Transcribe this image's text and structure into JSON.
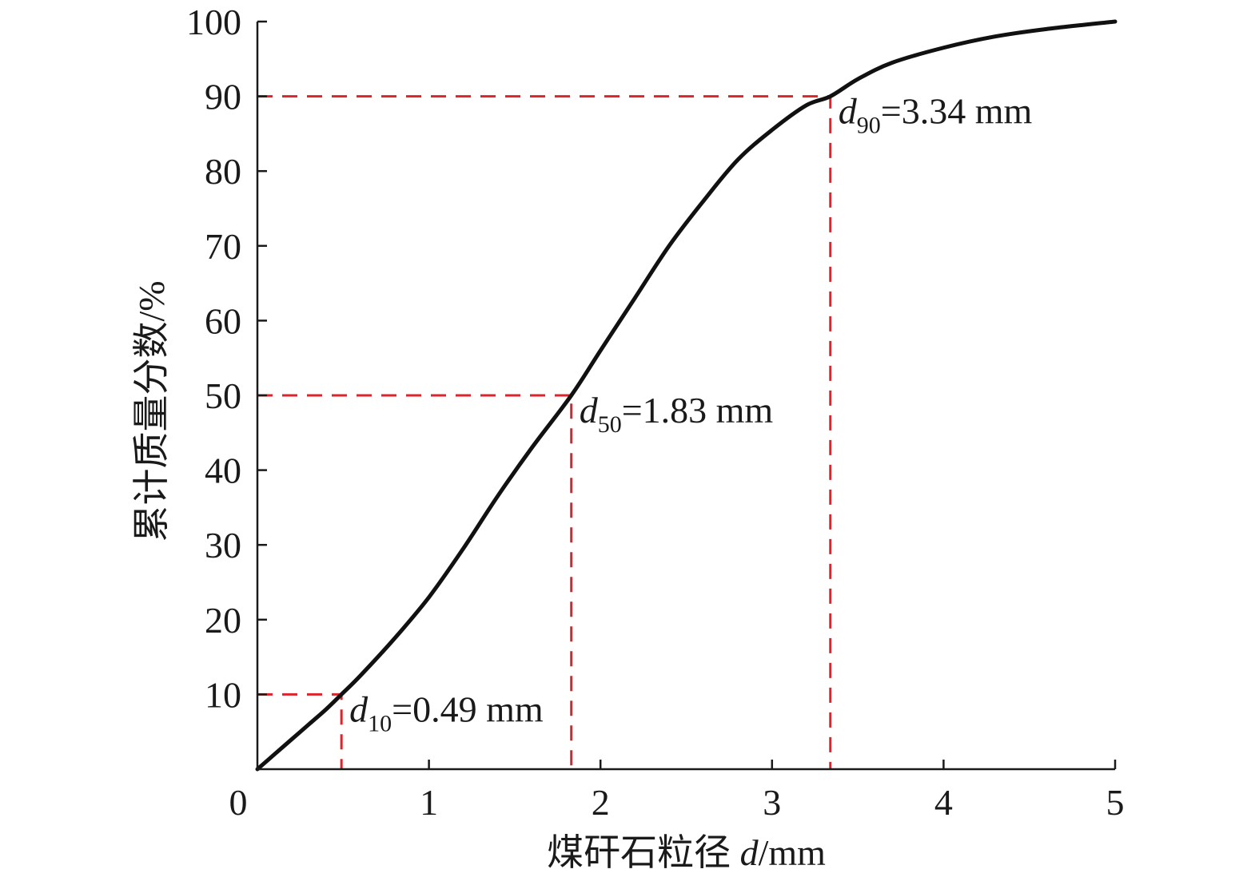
{
  "chart_data": {
    "type": "line",
    "xlabel_prefix": "煤矸石粒径 ",
    "xlabel_var": "d",
    "xlabel_unit": "/mm",
    "ylabel": "累计质量分数/%",
    "xlim": [
      0,
      5
    ],
    "ylim": [
      0,
      100
    ],
    "x_ticks": [
      0,
      1,
      2,
      3,
      4,
      5
    ],
    "y_ticks": [
      10,
      20,
      30,
      40,
      50,
      60,
      70,
      80,
      90,
      100
    ],
    "grid": false,
    "series": [
      {
        "x": [
          0.0,
          0.1,
          0.2,
          0.3,
          0.4,
          0.49,
          0.6,
          0.8,
          1.0,
          1.2,
          1.4,
          1.6,
          1.83,
          2.0,
          2.2,
          2.4,
          2.6,
          2.8,
          3.0,
          3.2,
          3.34,
          3.5,
          3.7,
          4.0,
          4.3,
          4.6,
          5.0
        ],
        "y": [
          0,
          2.0,
          4.0,
          6.0,
          8.0,
          10,
          12.5,
          17.5,
          23.0,
          29.5,
          36.5,
          43.0,
          50,
          56.0,
          63.0,
          70.0,
          76.0,
          81.5,
          85.5,
          88.8,
          90,
          92.3,
          94.5,
          96.5,
          98.0,
          99.0,
          100
        ]
      }
    ],
    "annotations": [
      {
        "var": "d",
        "sub": "10",
        "text": "=0.49 mm",
        "x": 0.49,
        "y": 10
      },
      {
        "var": "d",
        "sub": "50",
        "text": "=1.83 mm",
        "x": 1.83,
        "y": 50
      },
      {
        "var": "d",
        "sub": "90",
        "text": "=3.34 mm",
        "x": 3.34,
        "y": 90
      }
    ],
    "colors": {
      "curve": "#111111",
      "guide": "#d9262c",
      "axis": "#1a1a1a"
    }
  }
}
